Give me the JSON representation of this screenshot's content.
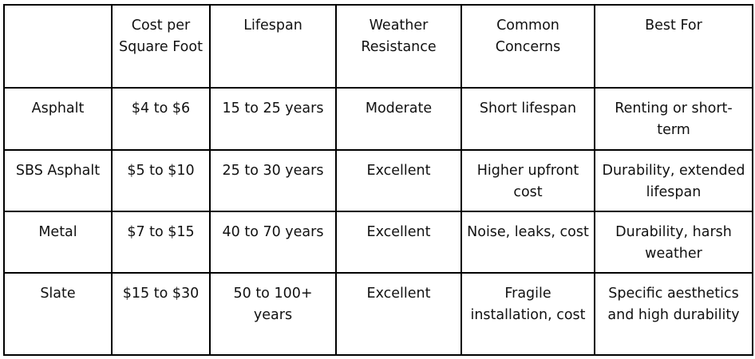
{
  "table": {
    "columns": [
      "Cost per Square Foot",
      "Lifespan",
      "Weather Resistance",
      "Common Concerns",
      "Best For"
    ],
    "rows": [
      [
        "Asphalt",
        "$4 to $6",
        "15 to 25 years",
        "Moderate",
        "Short lifespan",
        "Renting or short-term"
      ],
      [
        "SBS Asphalt",
        "$5 to $10",
        "25 to 30 years",
        "Excellent",
        "Higher upfront cost",
        "Durability, extended lifespan"
      ],
      [
        "Metal",
        "$7 to $15",
        "40 to 70 years",
        "Excellent",
        "Noise, leaks, cost",
        "Durability, harsh weather"
      ],
      [
        "Slate",
        "$15 to $30",
        "50 to 100+ years",
        "Excellent",
        "Fragile installation, cost",
        "Specific aesthetics and high durability"
      ]
    ]
  }
}
